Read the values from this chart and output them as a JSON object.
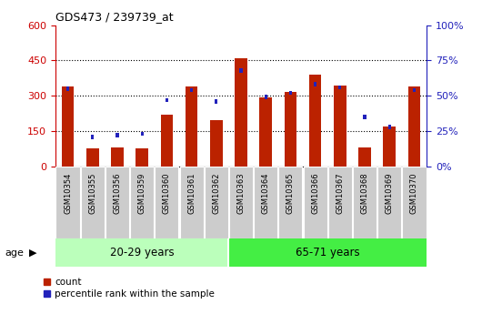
{
  "title": "GDS473 / 239739_at",
  "samples": [
    "GSM10354",
    "GSM10355",
    "GSM10356",
    "GSM10359",
    "GSM10360",
    "GSM10361",
    "GSM10362",
    "GSM10363",
    "GSM10364",
    "GSM10365",
    "GSM10366",
    "GSM10367",
    "GSM10368",
    "GSM10369",
    "GSM10370"
  ],
  "counts": [
    340,
    75,
    80,
    75,
    220,
    340,
    195,
    460,
    295,
    315,
    390,
    345,
    80,
    170,
    340
  ],
  "percentiles": [
    55,
    21,
    22,
    23,
    47,
    54,
    46,
    68,
    49,
    52,
    58,
    56,
    35,
    28,
    54
  ],
  "groups": [
    {
      "label": "20-29 years",
      "start": 0,
      "end": 7,
      "color": "#bbffbb"
    },
    {
      "label": "65-71 years",
      "start": 7,
      "end": 15,
      "color": "#44ee44"
    }
  ],
  "left_ylim": [
    0,
    600
  ],
  "right_ylim": [
    0,
    100
  ],
  "left_yticks": [
    0,
    150,
    300,
    450,
    600
  ],
  "right_yticks": [
    0,
    25,
    50,
    75,
    100
  ],
  "bar_color": "#bb2200",
  "blue_color": "#2222bb",
  "tick_bg_color": "#cccccc",
  "left_tick_color": "#cc0000",
  "right_tick_color": "#2222bb",
  "dotted_levels": [
    150,
    300,
    450
  ],
  "age_label": "age"
}
